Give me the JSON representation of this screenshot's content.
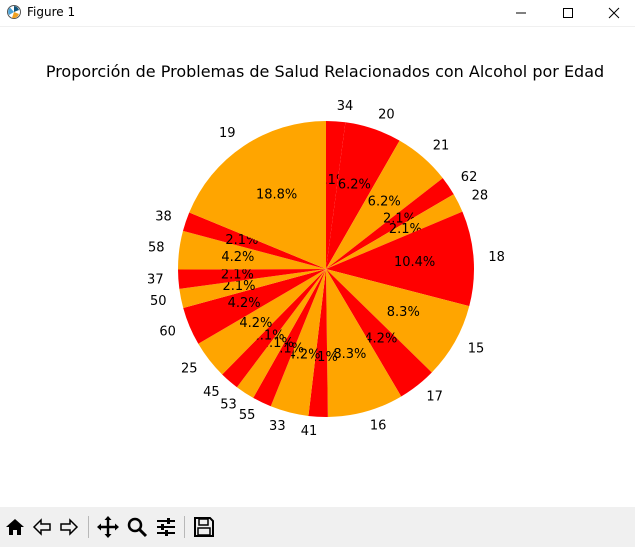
{
  "window": {
    "title": "Figure 1"
  },
  "toolbar": {
    "tools": [
      "home-icon",
      "back-icon",
      "forward-icon",
      "pan-icon",
      "zoom-icon",
      "configure-icon",
      "save-icon"
    ]
  },
  "colors": {
    "primary": "#ffa500",
    "secondary": "#ff0000"
  },
  "chart_data": {
    "type": "pie",
    "title": "Proporción de Problemas de Salud Relacionados con Alcohol por Edad",
    "start_angle_deg": 90,
    "direction": "clockwise",
    "slices": [
      {
        "label": "34",
        "value": 2.1,
        "pct_label": "2.1%",
        "color": "#ff0000"
      },
      {
        "label": "20",
        "value": 6.2,
        "pct_label": "6.2%",
        "color": "#ff0000"
      },
      {
        "label": "21",
        "value": 6.2,
        "pct_label": "6.2%",
        "color": "#ffa500"
      },
      {
        "label": "62",
        "value": 2.1,
        "pct_label": "2.1%",
        "color": "#ff0000"
      },
      {
        "label": "28",
        "value": 2.1,
        "pct_label": "2.1%",
        "color": "#ffa500"
      },
      {
        "label": "18",
        "value": 10.4,
        "pct_label": "10.4%",
        "color": "#ff0000"
      },
      {
        "label": "15",
        "value": 8.3,
        "pct_label": "8.3%",
        "color": "#ffa500"
      },
      {
        "label": "17",
        "value": 4.2,
        "pct_label": "4.2%",
        "color": "#ff0000"
      },
      {
        "label": "16",
        "value": 8.3,
        "pct_label": "8.3%",
        "color": "#ffa500"
      },
      {
        "label": "41",
        "value": 2.1,
        "pct_label": "2.1%",
        "color": "#ff0000"
      },
      {
        "label": "33",
        "value": 4.2,
        "pct_label": "4.2%",
        "color": "#ffa500"
      },
      {
        "label": "55",
        "value": 2.1,
        "pct_label": "2.1%",
        "color": "#ff0000"
      },
      {
        "label": "53",
        "value": 2.1,
        "pct_label": "2.1%",
        "color": "#ffa500"
      },
      {
        "label": "45",
        "value": 2.1,
        "pct_label": "2.1%",
        "color": "#ff0000"
      },
      {
        "label": "25",
        "value": 4.2,
        "pct_label": "4.2%",
        "color": "#ffa500"
      },
      {
        "label": "60",
        "value": 4.2,
        "pct_label": "4.2%",
        "color": "#ff0000"
      },
      {
        "label": "50",
        "value": 2.1,
        "pct_label": "2.1%",
        "color": "#ffa500"
      },
      {
        "label": "37",
        "value": 2.1,
        "pct_label": "2.1%",
        "color": "#ff0000"
      },
      {
        "label": "58",
        "value": 4.2,
        "pct_label": "4.2%",
        "color": "#ffa500"
      },
      {
        "label": "38",
        "value": 2.1,
        "pct_label": "2.1%",
        "color": "#ff0000"
      },
      {
        "label": "19",
        "value": 18.8,
        "pct_label": "18.8%",
        "color": "#ffa500"
      }
    ]
  }
}
